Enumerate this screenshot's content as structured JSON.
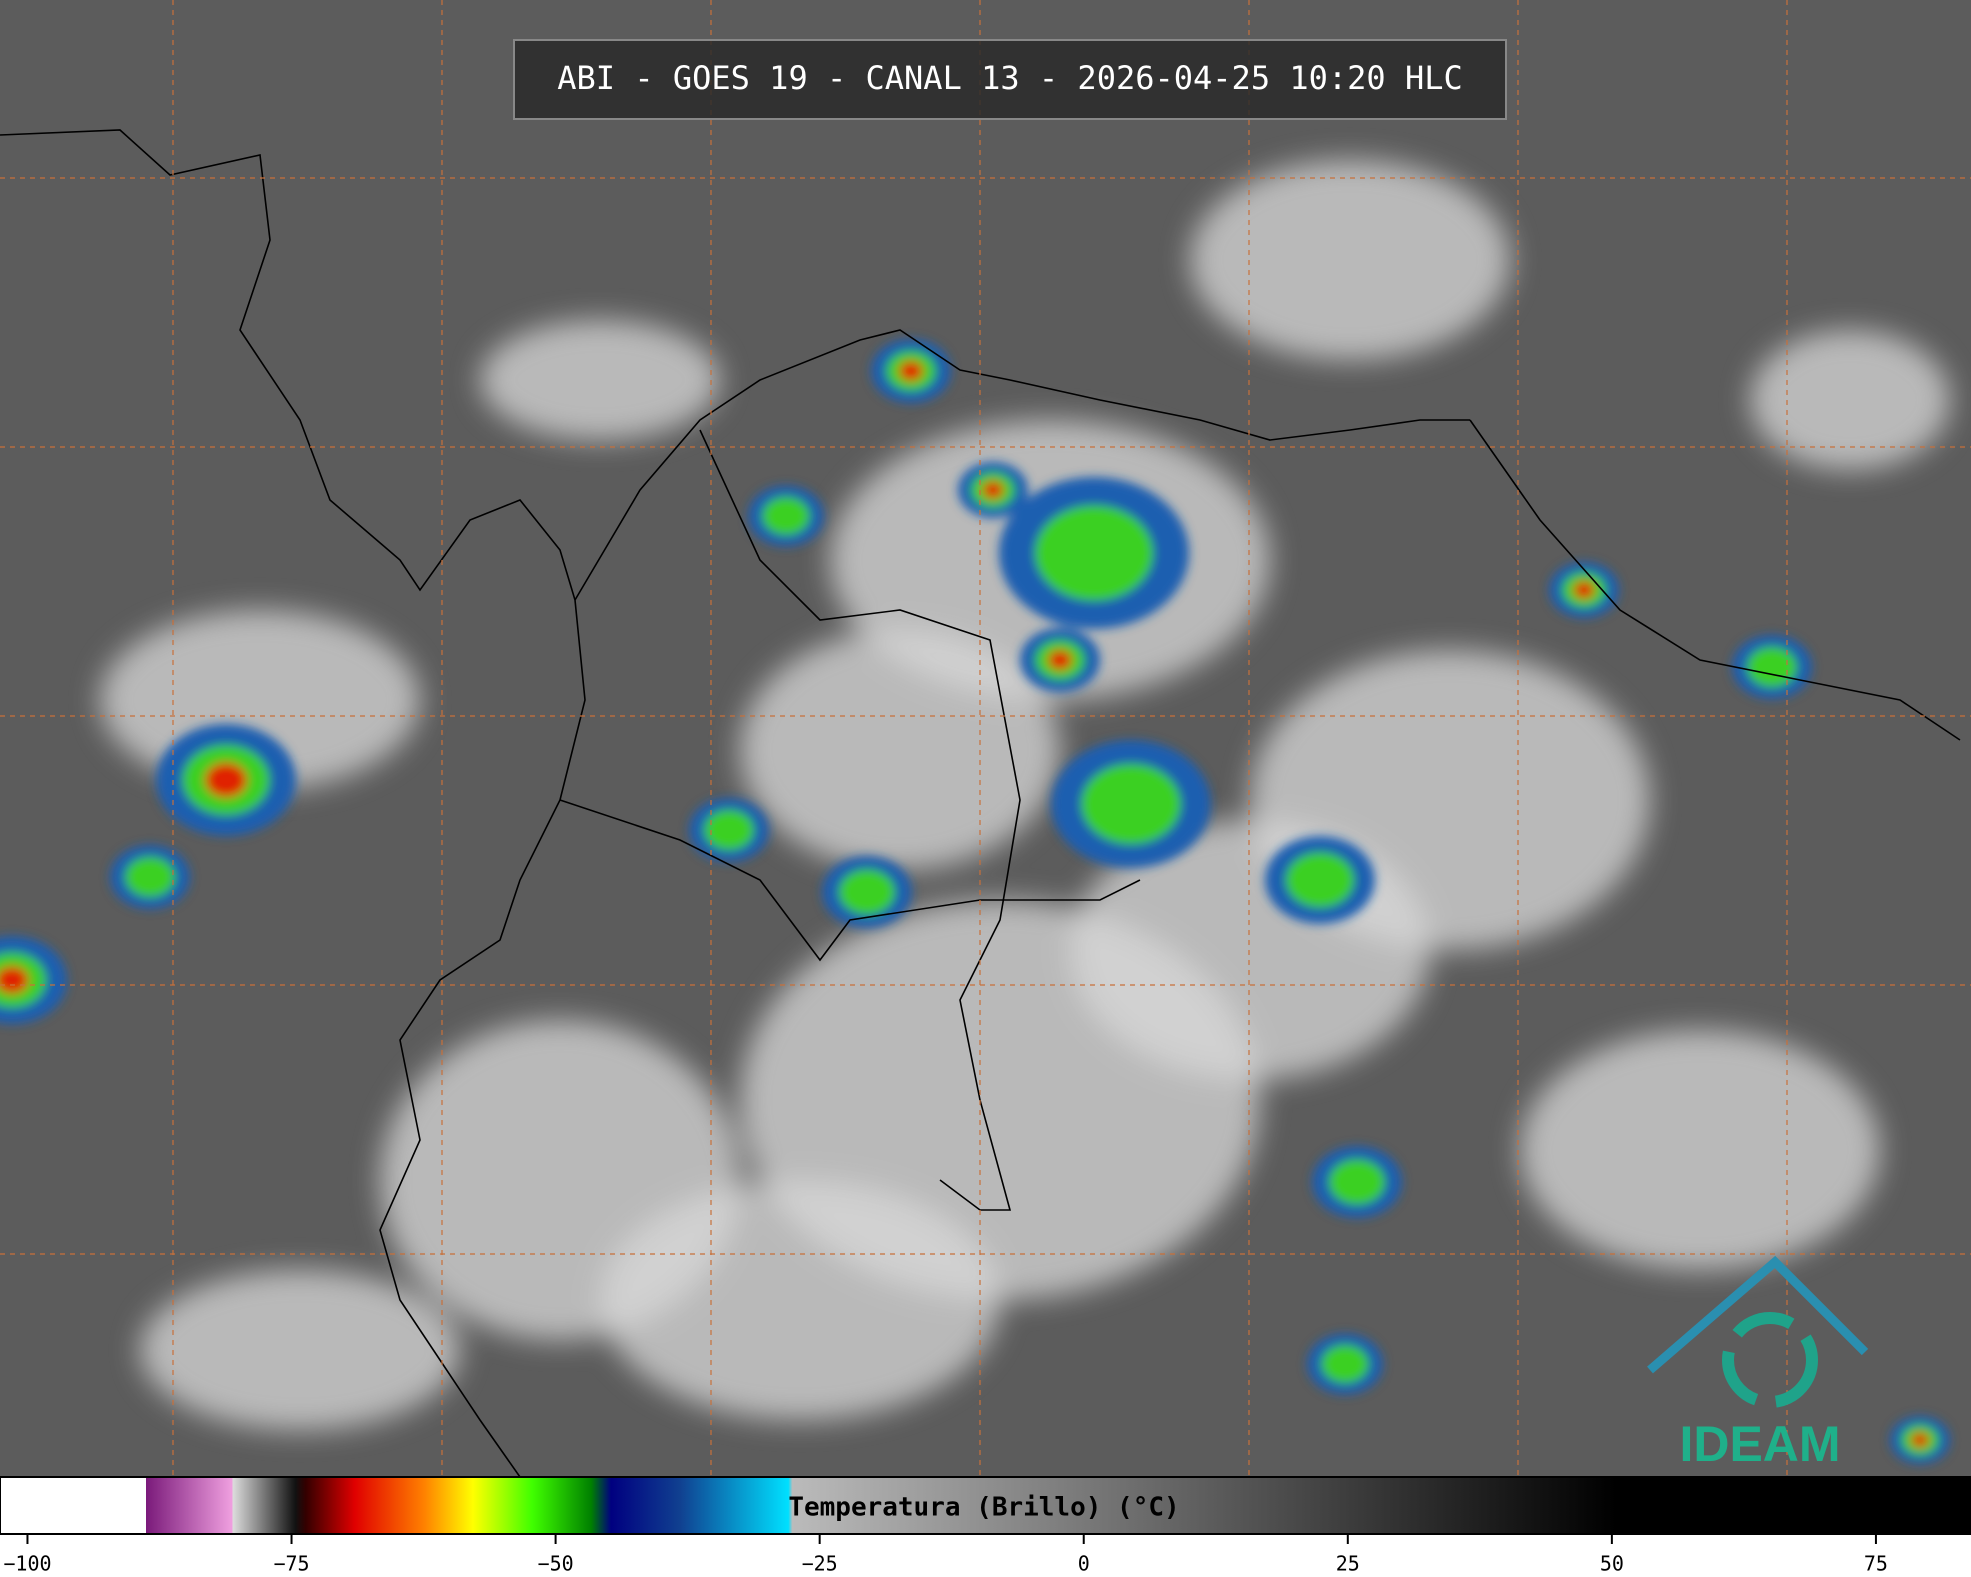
{
  "header": {
    "title": "ABI - GOES 19 - CANAL 13 - 2026-04-25 10:20 HLC"
  },
  "colorbar": {
    "label": "Temperatura (Brillo) (°C)",
    "xlim": [
      -102.6,
      84
    ],
    "xticks": [
      {
        "value": -100,
        "label": "−100"
      },
      {
        "value": -75,
        "label": "−75"
      },
      {
        "value": -50,
        "label": "−50"
      },
      {
        "value": -25,
        "label": "−25"
      },
      0,
      25,
      50,
      75
    ]
  },
  "logo": {
    "text": "IDEAM"
  }
}
